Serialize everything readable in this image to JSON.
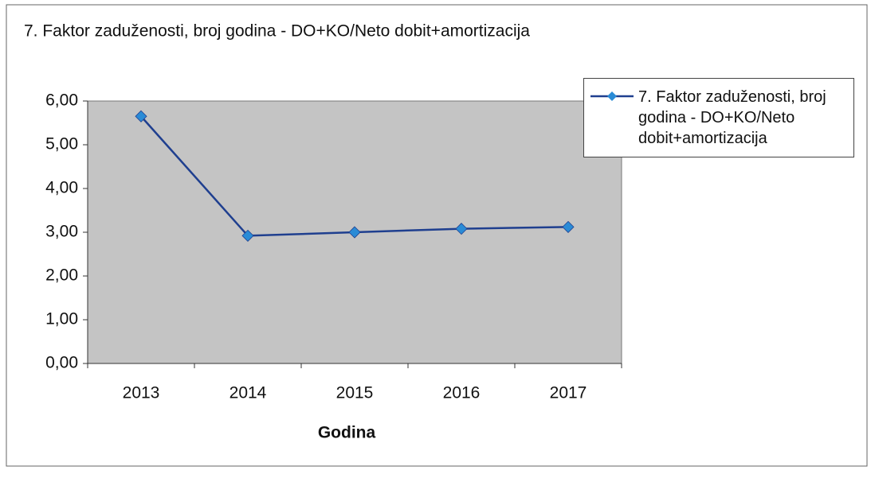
{
  "chart_data": {
    "type": "line",
    "title": "7. Faktor zaduženosti, broj godina - DO+KO/Neto dobit+amortizacija",
    "x_label": "Godina",
    "categories": [
      "2013",
      "2014",
      "2015",
      "2016",
      "2017"
    ],
    "series": [
      {
        "name": "7. Faktor zaduženosti, broj godina - DO+KO/Neto dobit+amortizacija",
        "color": "#1f3f8f",
        "marker_color": "#2a8bd6",
        "values": [
          5.65,
          2.92,
          3.0,
          3.08,
          3.12
        ]
      }
    ],
    "ylim": [
      0,
      6
    ],
    "yticks": [
      {
        "value": 0,
        "label": "0,00"
      },
      {
        "value": 1,
        "label": "1,00"
      },
      {
        "value": 2,
        "label": "2,00"
      },
      {
        "value": 3,
        "label": "3,00"
      },
      {
        "value": 4,
        "label": "4,00"
      },
      {
        "value": 5,
        "label": "5,00"
      },
      {
        "value": 6,
        "label": "6,00"
      }
    ],
    "plot_background": "#c4c4c4",
    "legend": "upper right"
  }
}
